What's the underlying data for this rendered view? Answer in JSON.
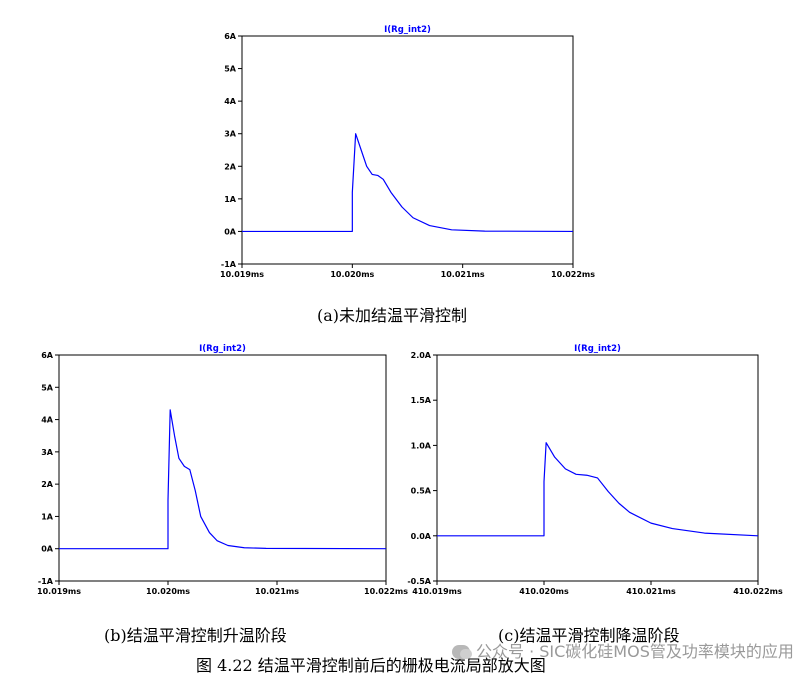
{
  "chart_data": [
    {
      "type": "line",
      "title": "I(Rg_int2)",
      "xlabel": "",
      "ylabel": "",
      "xlim": [
        10.019,
        10.022
      ],
      "ylim": [
        -1,
        6
      ],
      "xticks": [
        "10.019ms",
        "10.020ms",
        "10.021ms",
        "10.022ms"
      ],
      "yticks": [
        "6A",
        "5A",
        "4A",
        "3A",
        "2A",
        "1A",
        "0A",
        "-1A"
      ],
      "grid": false,
      "series": [
        {
          "name": "I(Rg_int2)",
          "color": "#0000ff",
          "x": [
            10.019,
            10.02,
            10.02,
            10.02003,
            10.02008,
            10.02013,
            10.02018,
            10.02023,
            10.02028,
            10.02035,
            10.02045,
            10.02055,
            10.0207,
            10.0209,
            10.0212,
            10.022
          ],
          "y": [
            0,
            0,
            1.2,
            3.0,
            2.5,
            2.0,
            1.75,
            1.72,
            1.6,
            1.2,
            0.75,
            0.42,
            0.18,
            0.05,
            0.01,
            0
          ]
        }
      ],
      "caption": "(a)未加结温平滑控制"
    },
    {
      "type": "line",
      "title": "I(Rg_int2)",
      "xlabel": "",
      "ylabel": "",
      "xlim": [
        10.019,
        10.022
      ],
      "ylim": [
        -1,
        6
      ],
      "xticks": [
        "10.019ms",
        "10.020ms",
        "10.021ms",
        "10.022ms"
      ],
      "yticks": [
        "6A",
        "5A",
        "4A",
        "3A",
        "2A",
        "1A",
        "0A",
        "-1A"
      ],
      "grid": false,
      "series": [
        {
          "name": "I(Rg_int2)",
          "color": "#0000ff",
          "x": [
            10.019,
            10.02,
            10.02,
            10.02002,
            10.02006,
            10.0201,
            10.02015,
            10.0202,
            10.02025,
            10.0203,
            10.02038,
            10.02045,
            10.02055,
            10.0207,
            10.0209,
            10.022
          ],
          "y": [
            0,
            0,
            1.5,
            4.3,
            3.5,
            2.8,
            2.55,
            2.45,
            1.8,
            1.0,
            0.5,
            0.25,
            0.1,
            0.03,
            0.01,
            0
          ]
        }
      ],
      "caption": "(b)结温平滑控制升温阶段"
    },
    {
      "type": "line",
      "title": "I(Rg_int2)",
      "xlabel": "",
      "ylabel": "",
      "xlim": [
        410.019,
        410.022
      ],
      "ylim": [
        -0.5,
        2.0
      ],
      "xticks": [
        "410.019ms",
        "410.020ms",
        "410.021ms",
        "410.022ms"
      ],
      "yticks": [
        "2.0A",
        "1.5A",
        "1.0A",
        "0.5A",
        "0.0A",
        "-0.5A"
      ],
      "grid": false,
      "series": [
        {
          "name": "I(Rg_int2)",
          "color": "#0000ff",
          "x": [
            410.019,
            410.02,
            410.02,
            410.02002,
            410.0201,
            410.0202,
            410.0203,
            410.0204,
            410.0205,
            410.0206,
            410.0207,
            410.0208,
            410.021,
            410.0212,
            410.0215,
            410.022
          ],
          "y": [
            0,
            0,
            0.6,
            1.03,
            0.87,
            0.74,
            0.68,
            0.67,
            0.64,
            0.49,
            0.36,
            0.26,
            0.14,
            0.08,
            0.03,
            0
          ]
        }
      ],
      "caption": "(c)结温平滑控制降温阶段"
    }
  ],
  "figure_caption": "图 4.22  结温平滑控制前后的栅极电流局部放大图",
  "watermark": "公众号 · SIC碳化硅MOS管及功率模块的应用"
}
